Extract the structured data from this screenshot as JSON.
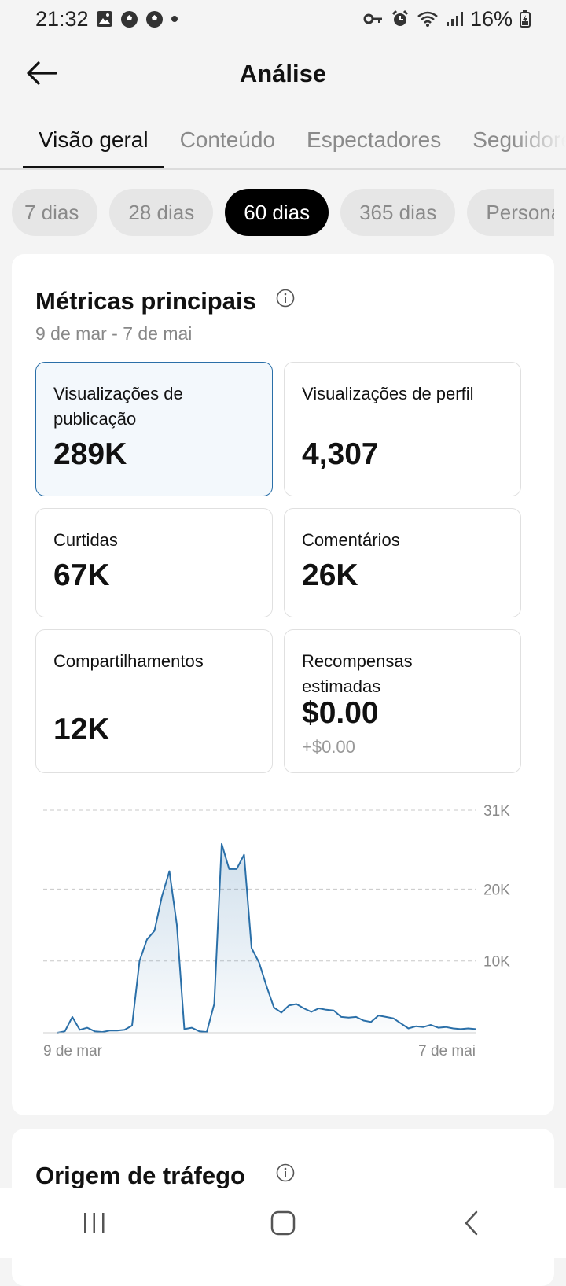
{
  "status_bar": {
    "time": "21:32",
    "battery": "16%"
  },
  "header": {
    "title": "Análise"
  },
  "tabs": [
    {
      "label": "Visão geral",
      "active": true
    },
    {
      "label": "Conteúdo",
      "active": false
    },
    {
      "label": "Espectadores",
      "active": false
    },
    {
      "label": "Seguidores",
      "active": false
    }
  ],
  "periods": [
    {
      "label": "7 dias",
      "active": false
    },
    {
      "label": "28 dias",
      "active": false
    },
    {
      "label": "60 dias",
      "active": true
    },
    {
      "label": "365 dias",
      "active": false
    },
    {
      "label": "Personalizado",
      "active": false
    }
  ],
  "metrics_card": {
    "title": "Métricas principais",
    "date_range": "9 de mar - 7 de mai",
    "metrics": [
      {
        "label": "Visualizações de publicação",
        "value": "289K",
        "selected": true
      },
      {
        "label": "Visualizações de perfil",
        "value": "4,307",
        "selected": false
      },
      {
        "label": "Curtidas",
        "value": "67K",
        "selected": false
      },
      {
        "label": "Comentários",
        "value": "26K",
        "selected": false
      },
      {
        "label": "Compartilhamentos",
        "value": "12K",
        "selected": false
      },
      {
        "label": "Recompensas estimadas",
        "value": "$0.00",
        "sub": "+$0.00",
        "selected": false
      }
    ]
  },
  "chart_data": {
    "type": "area",
    "x_start_label": "9 de mar",
    "x_end_label": "7 de mai",
    "y_ticks": [
      "10K",
      "20K",
      "31K"
    ],
    "ylim": [
      0,
      31000
    ],
    "grid": true,
    "color": "#2a6fa8",
    "values": [
      0,
      200,
      2200,
      400,
      700,
      200,
      100,
      300,
      300,
      400,
      1000,
      10000,
      13000,
      14200,
      19000,
      22500,
      15000,
      500,
      700,
      200,
      100,
      4000,
      26300,
      22800,
      22800,
      24800,
      11800,
      9800,
      6500,
      3500,
      2800,
      3800,
      4000,
      3400,
      2900,
      3400,
      3200,
      3100,
      2200,
      2100,
      2200,
      1700,
      1500,
      2400,
      2200,
      2000,
      1300,
      600,
      900,
      800,
      1100,
      700,
      800,
      600,
      500,
      600,
      500
    ]
  },
  "traffic_card": {
    "title": "Origem de tráfego"
  }
}
